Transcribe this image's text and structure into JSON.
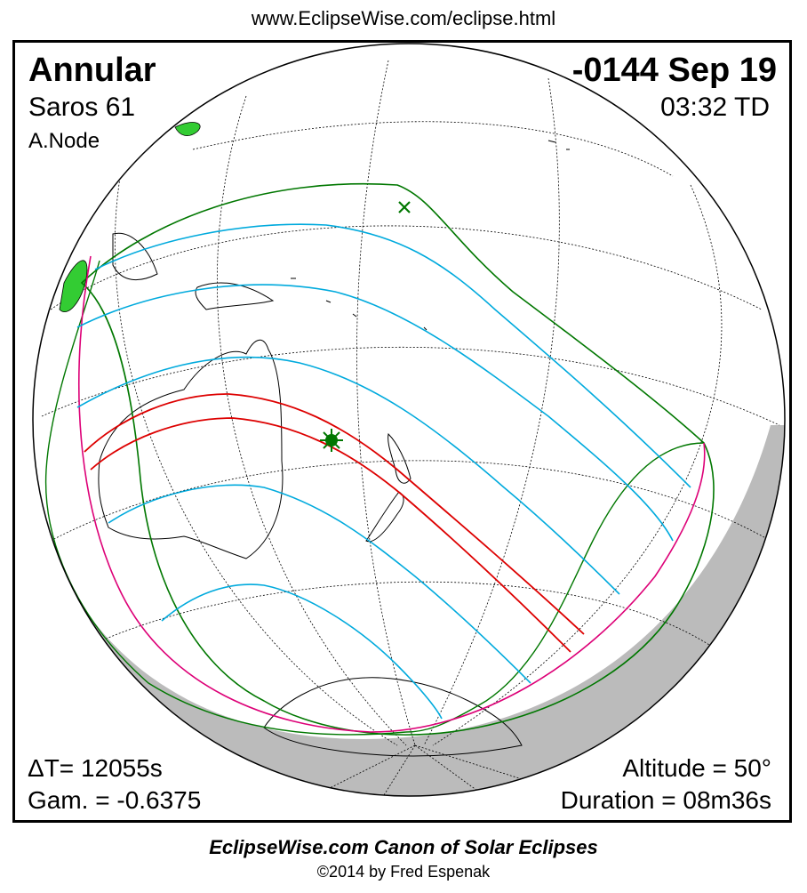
{
  "header": {
    "url": "www.EclipseWise.com/eclipse.html"
  },
  "eclipse": {
    "type": "Annular",
    "date": "-0144 Sep 19",
    "saros": "Saros  61",
    "time": "03:32 TD",
    "node": "A.Node",
    "delta_t": "ΔT=  12055s",
    "gamma": "Gam. = -0.6375",
    "altitude": "Altitude = 50°",
    "duration": "Duration = 08m36s"
  },
  "footer": {
    "canon": "EclipseWise.com Canon of Solar Eclipses",
    "copyright": "©2014 by Fred Espenak"
  },
  "colors": {
    "central_path": "#dd0000",
    "partial_limits": "#00aadd",
    "penumbra_outline": "#007700",
    "rise_set_curve": "#dd0077",
    "night_shade": "#bbbbbb",
    "land_green": "#33cc33"
  }
}
